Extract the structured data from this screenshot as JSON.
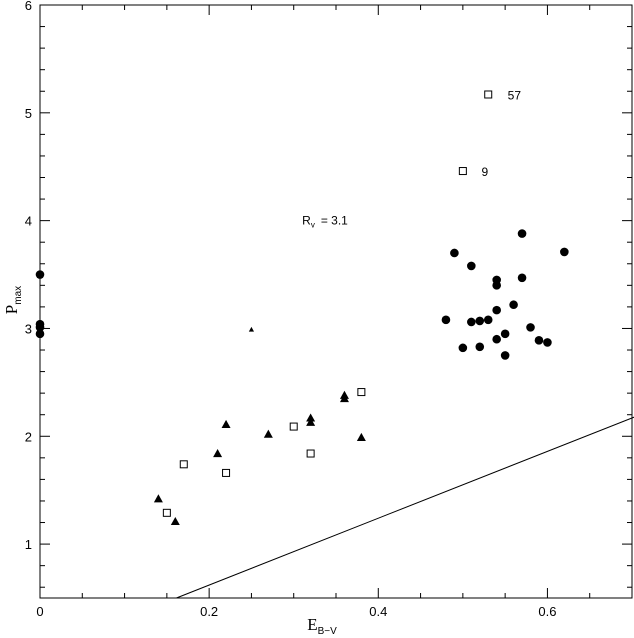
{
  "chart_data": {
    "type": "scatter",
    "title": "",
    "xlabel": {
      "main": "E",
      "sub": "B−V"
    },
    "ylabel": {
      "main": "P",
      "sub": "max"
    },
    "xlim": [
      0,
      0.7
    ],
    "ylim": [
      0.5,
      6
    ],
    "x_ticks": [
      0,
      0.2,
      0.4,
      0.6
    ],
    "x_tick_labels": [
      "0",
      "0.2",
      "0.4",
      "0.6"
    ],
    "y_ticks": [
      1,
      2,
      3,
      4,
      5,
      6
    ],
    "y_tick_labels": [
      "1",
      "2",
      "3",
      "4",
      "5",
      "6"
    ],
    "grid": false,
    "legend": "none",
    "line": {
      "slope": 3.1,
      "label_main": "R",
      "label_sub": "v",
      "label_value": "= 3.1",
      "label_at": [
        0.31,
        4.0
      ]
    },
    "series": [
      {
        "marker": "filled-circle",
        "points": [
          [
            0,
            3.5
          ],
          [
            0,
            3.04
          ],
          [
            0,
            3.01
          ],
          [
            0,
            2.95
          ],
          [
            0.48,
            3.08
          ],
          [
            0.49,
            3.7
          ],
          [
            0.5,
            2.82
          ],
          [
            0.51,
            3.58
          ],
          [
            0.51,
            3.06
          ],
          [
            0.52,
            3.07
          ],
          [
            0.52,
            2.83
          ],
          [
            0.53,
            3.08
          ],
          [
            0.54,
            3.45
          ],
          [
            0.54,
            3.4
          ],
          [
            0.54,
            3.17
          ],
          [
            0.54,
            2.9
          ],
          [
            0.55,
            2.95
          ],
          [
            0.55,
            2.75
          ],
          [
            0.56,
            3.22
          ],
          [
            0.57,
            3.88
          ],
          [
            0.57,
            3.47
          ],
          [
            0.58,
            3.01
          ],
          [
            0.59,
            2.89
          ],
          [
            0.6,
            2.87
          ],
          [
            0.62,
            3.71
          ]
        ]
      },
      {
        "marker": "open-square",
        "points": [
          [
            0.15,
            1.29
          ],
          [
            0.17,
            1.74
          ],
          [
            0.22,
            1.66
          ],
          [
            0.3,
            2.09
          ],
          [
            0.32,
            1.84
          ],
          [
            0.38,
            2.41
          ],
          [
            0.5,
            4.46
          ],
          [
            0.53,
            5.17
          ]
        ]
      },
      {
        "marker": "filled-triangle",
        "points": [
          [
            0.14,
            1.42
          ],
          [
            0.16,
            1.21
          ],
          [
            0.21,
            1.84
          ],
          [
            0.22,
            2.11
          ],
          [
            0.27,
            2.02
          ],
          [
            0.32,
            2.17
          ],
          [
            0.32,
            2.13
          ],
          [
            0.36,
            2.38
          ],
          [
            0.36,
            2.35
          ],
          [
            0.38,
            1.99
          ]
        ]
      },
      {
        "marker": "small-filled-triangle",
        "points": [
          [
            0.25,
            2.99
          ]
        ]
      }
    ],
    "annotations": [
      {
        "text": "57",
        "x": 0.553,
        "y": 5.17
      },
      {
        "text": "9",
        "x": 0.522,
        "y": 4.46
      }
    ]
  }
}
